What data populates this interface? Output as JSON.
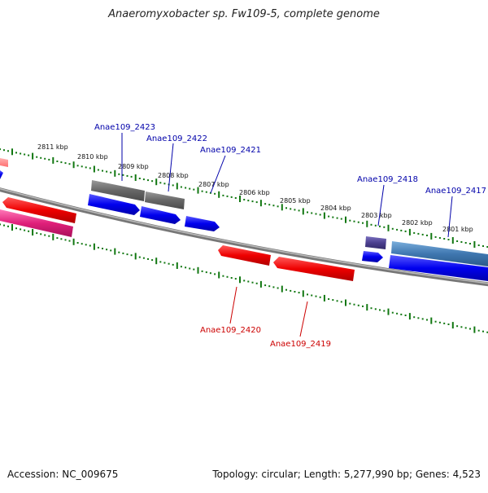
{
  "title": "Anaeromyxobacter sp. Fw109-5, complete genome",
  "footer": {
    "accession": "Accession: NC_009675",
    "summary": "Topology: circular; Length: 5,277,990 bp; Genes: 4,523"
  },
  "scale": {
    "unit": "kbp",
    "ticks": [
      "2811 kbp",
      "2810 kbp",
      "2809 kbp",
      "2808 kbp",
      "2807 kbp",
      "2806 kbp",
      "2805 kbp",
      "2804 kbp",
      "2803 kbp",
      "2802 kbp",
      "2801 kbp"
    ]
  },
  "colors": {
    "forward_cds": "#0000ee",
    "reverse_cds": "#ee0000",
    "forward_label": "#0000aa",
    "reverse_label": "#cc0000",
    "grey_feature": "#666666",
    "purple_feature": "#4b3f8f",
    "steel_feature": "#3f77b0",
    "pink_feature": "#e0207a",
    "backbone": "#888888",
    "scale_dots": "#117711"
  },
  "genes": {
    "top": [
      {
        "name": "Anae109_2423"
      },
      {
        "name": "Anae109_2422"
      },
      {
        "name": "Anae109_2421"
      },
      {
        "name": "Anae109_2418"
      },
      {
        "name": "Anae109_2417"
      }
    ],
    "bottom": [
      {
        "name": "Anae109_2420"
      },
      {
        "name": "Anae109_2419"
      }
    ]
  }
}
